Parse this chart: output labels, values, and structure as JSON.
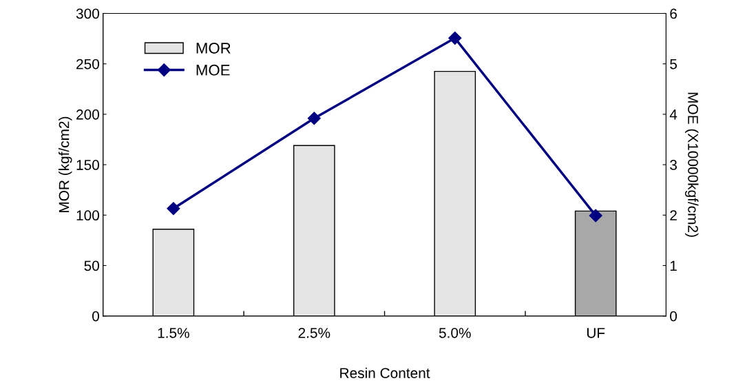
{
  "chart_data": {
    "type": "bar",
    "xlabel": "Resin Content",
    "ylabel": "MOR (kgf/cm2)",
    "y2label": "MOE (X10000kgf/cm2)",
    "categories": [
      "1.5%",
      "2.5%",
      "5.0%",
      "UF"
    ],
    "series": [
      {
        "name": "MOR",
        "colors": [
          "#e4e4e4",
          "#e4e4e4",
          "#e4e4e4",
          "#a8a8a8"
        ],
        "values": [
          86,
          169,
          242.5,
          104
        ]
      },
      {
        "name": "MOE",
        "type": "line",
        "axis": "y2",
        "color": "#000080",
        "marker": "diamond",
        "values": [
          2.13,
          3.92,
          5.51,
          1.99
        ]
      }
    ],
    "ylim": [
      0,
      300
    ],
    "yticks": [
      0,
      50,
      100,
      150,
      200,
      250,
      300
    ],
    "y2lim": [
      0,
      6
    ],
    "y2ticks": [
      0,
      1,
      2,
      3,
      4,
      5,
      6
    ],
    "grid": false,
    "legend": "top left"
  }
}
